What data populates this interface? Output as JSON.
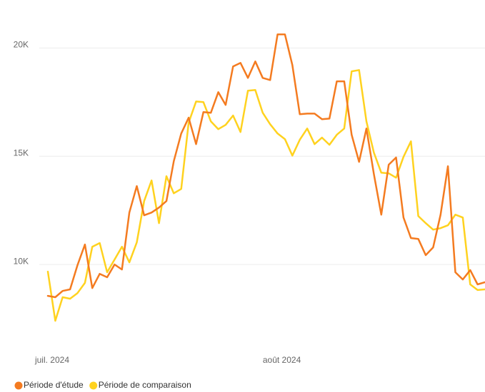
{
  "chart_data": {
    "type": "line",
    "categories": [
      "juil. 2024",
      null,
      null,
      null,
      null,
      null,
      null,
      null,
      null,
      null,
      null,
      null,
      null,
      null,
      null,
      null,
      null,
      null,
      null,
      null,
      null,
      null,
      null,
      null,
      null,
      null,
      null,
      null,
      null,
      null,
      null,
      "août 2024",
      null,
      null,
      null,
      null,
      null,
      null,
      null,
      null,
      null,
      null,
      null,
      null,
      null,
      null,
      null,
      null,
      null,
      null,
      null,
      null,
      null,
      null,
      null,
      null,
      null,
      null,
      null,
      null
    ],
    "series": [
      {
        "name": "Période d'étude",
        "color": "#f47b20",
        "values": [
          8550,
          8490,
          8780,
          8850,
          9970,
          10920,
          8910,
          9570,
          9410,
          10000,
          9770,
          12400,
          13620,
          12270,
          12400,
          12630,
          12930,
          14770,
          16050,
          16780,
          15560,
          17040,
          17010,
          17960,
          17370,
          19150,
          19310,
          18620,
          19380,
          18620,
          18520,
          20630,
          20630,
          19210,
          16940,
          16970,
          16970,
          16710,
          16740,
          18460,
          18460,
          15990,
          14740,
          16280,
          14180,
          12300,
          14610,
          14940,
          12170,
          11220,
          11180,
          10430,
          10790,
          12300,
          14540,
          9640,
          9310,
          9740,
          9080,
          9180
        ]
      },
      {
        "name": "Période de comparaison",
        "color": "#ffd21f",
        "values": [
          9670,
          7400,
          8490,
          8420,
          8680,
          9150,
          10820,
          10990,
          9640,
          10230,
          10820,
          10100,
          11020,
          12930,
          13880,
          11910,
          14080,
          13290,
          13490,
          16550,
          17530,
          17500,
          16610,
          16250,
          16450,
          16880,
          16120,
          18030,
          18060,
          17010,
          16480,
          16050,
          15790,
          15030,
          15760,
          16280,
          15560,
          15860,
          15530,
          15990,
          16280,
          18920,
          18980,
          16610,
          15170,
          14240,
          14210,
          14010,
          14970,
          15690,
          12240,
          11910,
          11610,
          11680,
          11810,
          12300,
          12170,
          9080,
          8820,
          8850
        ]
      }
    ],
    "ylim": [
      6250,
      20900
    ],
    "yticks": [
      {
        "value": 10000,
        "label": "10K"
      },
      {
        "value": 15000,
        "label": "15K"
      },
      {
        "value": 20000,
        "label": "20K"
      }
    ],
    "grid": true,
    "legend": "bottom-left"
  }
}
